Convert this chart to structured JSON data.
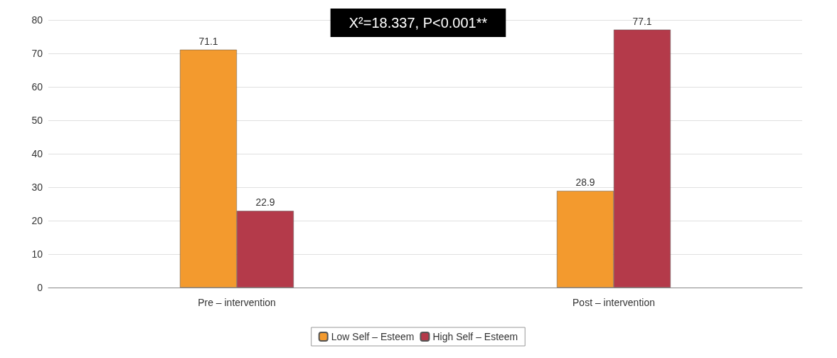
{
  "chart_data": {
    "type": "bar",
    "title": "X²=18.337, P<0.001**",
    "categories": [
      "Pre – intervention",
      "Post – intervention"
    ],
    "series": [
      {
        "name": "Low Self – Esteem",
        "color": "#f39a2e",
        "values": [
          71.1,
          28.9
        ]
      },
      {
        "name": "High Self – Esteem",
        "color": "#b43a4a",
        "values": [
          22.9,
          77.1
        ]
      }
    ],
    "ylim": [
      0,
      80
    ],
    "yticks": [
      0,
      10,
      20,
      30,
      40,
      50,
      60,
      70,
      80
    ],
    "grid": "y",
    "legend": "bottom",
    "data_labels": true
  }
}
